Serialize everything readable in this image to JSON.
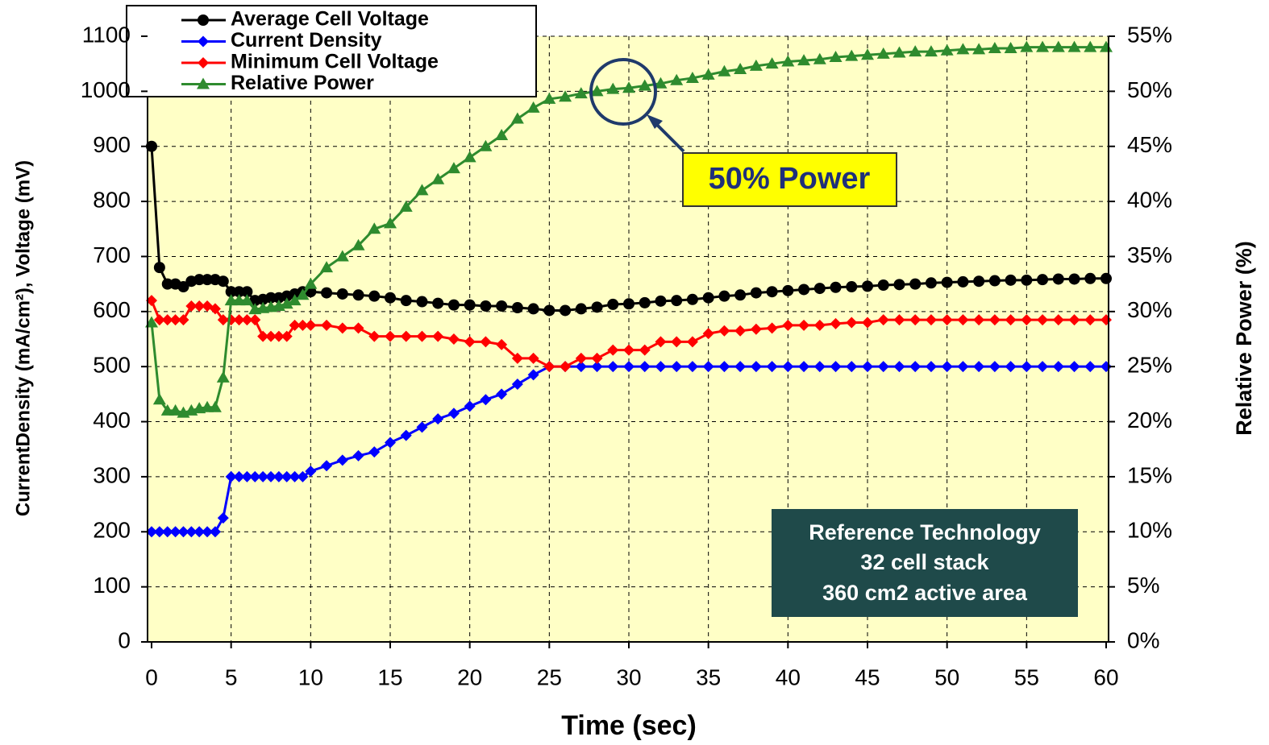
{
  "chart_data": {
    "type": "line",
    "xlabel": "Time (sec)",
    "ylabel": "CurrentDensity (mA/cm²), Voltage (mV)",
    "y2label": "Relative Power (%)",
    "x": [
      0,
      0.5,
      1,
      1.5,
      2,
      2.5,
      3,
      3.5,
      4,
      4.5,
      5,
      5.5,
      6,
      6.5,
      7,
      7.5,
      8,
      8.5,
      9,
      9.5,
      10,
      11,
      12,
      13,
      14,
      15,
      16,
      17,
      18,
      19,
      20,
      21,
      22,
      23,
      24,
      25,
      26,
      27,
      28,
      29,
      30,
      31,
      32,
      33,
      34,
      35,
      36,
      37,
      38,
      39,
      40,
      41,
      42,
      43,
      44,
      45,
      46,
      47,
      48,
      49,
      50,
      51,
      52,
      53,
      54,
      55,
      56,
      57,
      58,
      59,
      60
    ],
    "series": [
      {
        "name": "Average Cell Voltage",
        "color": "#000000",
        "marker": "circle",
        "values": [
          900,
          680,
          650,
          650,
          645,
          655,
          658,
          658,
          658,
          655,
          636,
          636,
          636,
          620,
          622,
          625,
          625,
          628,
          632,
          636,
          636,
          634,
          632,
          630,
          628,
          625,
          620,
          618,
          615,
          612,
          612,
          610,
          610,
          607,
          605,
          602,
          602,
          605,
          608,
          613,
          614,
          616,
          619,
          620,
          622,
          625,
          628,
          630,
          634,
          636,
          638,
          640,
          642,
          644,
          645,
          646,
          648,
          649,
          650,
          652,
          653,
          654,
          655,
          656,
          657,
          657,
          658,
          659,
          659,
          660,
          660
        ]
      },
      {
        "name": "Current Density",
        "color": "#0000ff",
        "marker": "diamond",
        "values": [
          200,
          200,
          200,
          200,
          200,
          200,
          200,
          200,
          200,
          225,
          300,
          300,
          300,
          300,
          300,
          300,
          300,
          300,
          300,
          300,
          310,
          320,
          330,
          338,
          345,
          362,
          375,
          390,
          405,
          415,
          428,
          440,
          450,
          468,
          485,
          500,
          500,
          500,
          500,
          500,
          500,
          500,
          500,
          500,
          500,
          500,
          500,
          500,
          500,
          500,
          500,
          500,
          500,
          500,
          500,
          500,
          500,
          500,
          500,
          500,
          500,
          500,
          500,
          500,
          500,
          500,
          500,
          500,
          500,
          500,
          500
        ]
      },
      {
        "name": "Minimum Cell Voltage",
        "color": "#ff0000",
        "marker": "diamond",
        "values": [
          620,
          585,
          585,
          585,
          585,
          610,
          610,
          610,
          605,
          585,
          585,
          585,
          585,
          585,
          555,
          555,
          555,
          555,
          575,
          575,
          575,
          575,
          570,
          570,
          555,
          555,
          555,
          555,
          555,
          550,
          545,
          545,
          540,
          515,
          515,
          500,
          500,
          515,
          515,
          530,
          530,
          530,
          545,
          545,
          545,
          560,
          565,
          565,
          568,
          570,
          575,
          575,
          575,
          578,
          580,
          580,
          585,
          585,
          585,
          585,
          585,
          585,
          585,
          585,
          585,
          585,
          585,
          585,
          585,
          585,
          585
        ]
      },
      {
        "name": "Relative Power",
        "color": "#2e8b2e",
        "marker": "triangle",
        "axis": "y2",
        "values": [
          29,
          22,
          21,
          21,
          20.8,
          21,
          21.2,
          21.3,
          21.3,
          24,
          31,
          31,
          31,
          30.2,
          30.3,
          30.4,
          30.5,
          30.7,
          31,
          31.5,
          32.5,
          34,
          35,
          36,
          37.5,
          38,
          39.5,
          41,
          42,
          43,
          44,
          45,
          46,
          47.5,
          48.5,
          49.3,
          49.5,
          49.8,
          50,
          50.2,
          50.3,
          50.5,
          50.7,
          51,
          51.2,
          51.5,
          51.8,
          52,
          52.3,
          52.5,
          52.7,
          52.8,
          52.9,
          53.1,
          53.2,
          53.3,
          53.4,
          53.5,
          53.6,
          53.6,
          53.7,
          53.8,
          53.8,
          53.9,
          53.9,
          54,
          54,
          54,
          54,
          54,
          54
        ]
      }
    ],
    "xlim": [
      0,
      60
    ],
    "xticks": [
      0,
      5,
      10,
      15,
      20,
      25,
      30,
      35,
      40,
      45,
      50,
      55,
      60
    ],
    "ylim": [
      0,
      1100
    ],
    "yticks": [
      0,
      100,
      200,
      300,
      400,
      500,
      600,
      700,
      800,
      900,
      1000,
      1100
    ],
    "y2lim": [
      0,
      55
    ],
    "y2ticks": [
      {
        "value": 0,
        "label": "0%"
      },
      {
        "value": 5,
        "label": "5%"
      },
      {
        "value": 10,
        "label": "10%"
      },
      {
        "value": 15,
        "label": "15%"
      },
      {
        "value": 20,
        "label": "20%"
      },
      {
        "value": 25,
        "label": "25%"
      },
      {
        "value": 30,
        "label": "30%"
      },
      {
        "value": 35,
        "label": "35%"
      },
      {
        "value": 40,
        "label": "40%"
      },
      {
        "value": 45,
        "label": "45%"
      },
      {
        "value": 50,
        "label": "50%"
      },
      {
        "value": 55,
        "label": "55%"
      }
    ],
    "grid": true,
    "legend": "top-left",
    "annotations": [
      {
        "text": "50% Power"
      },
      {
        "lines": [
          "Reference Technology",
          "32 cell stack",
          "360 cm2 active area"
        ]
      }
    ]
  }
}
